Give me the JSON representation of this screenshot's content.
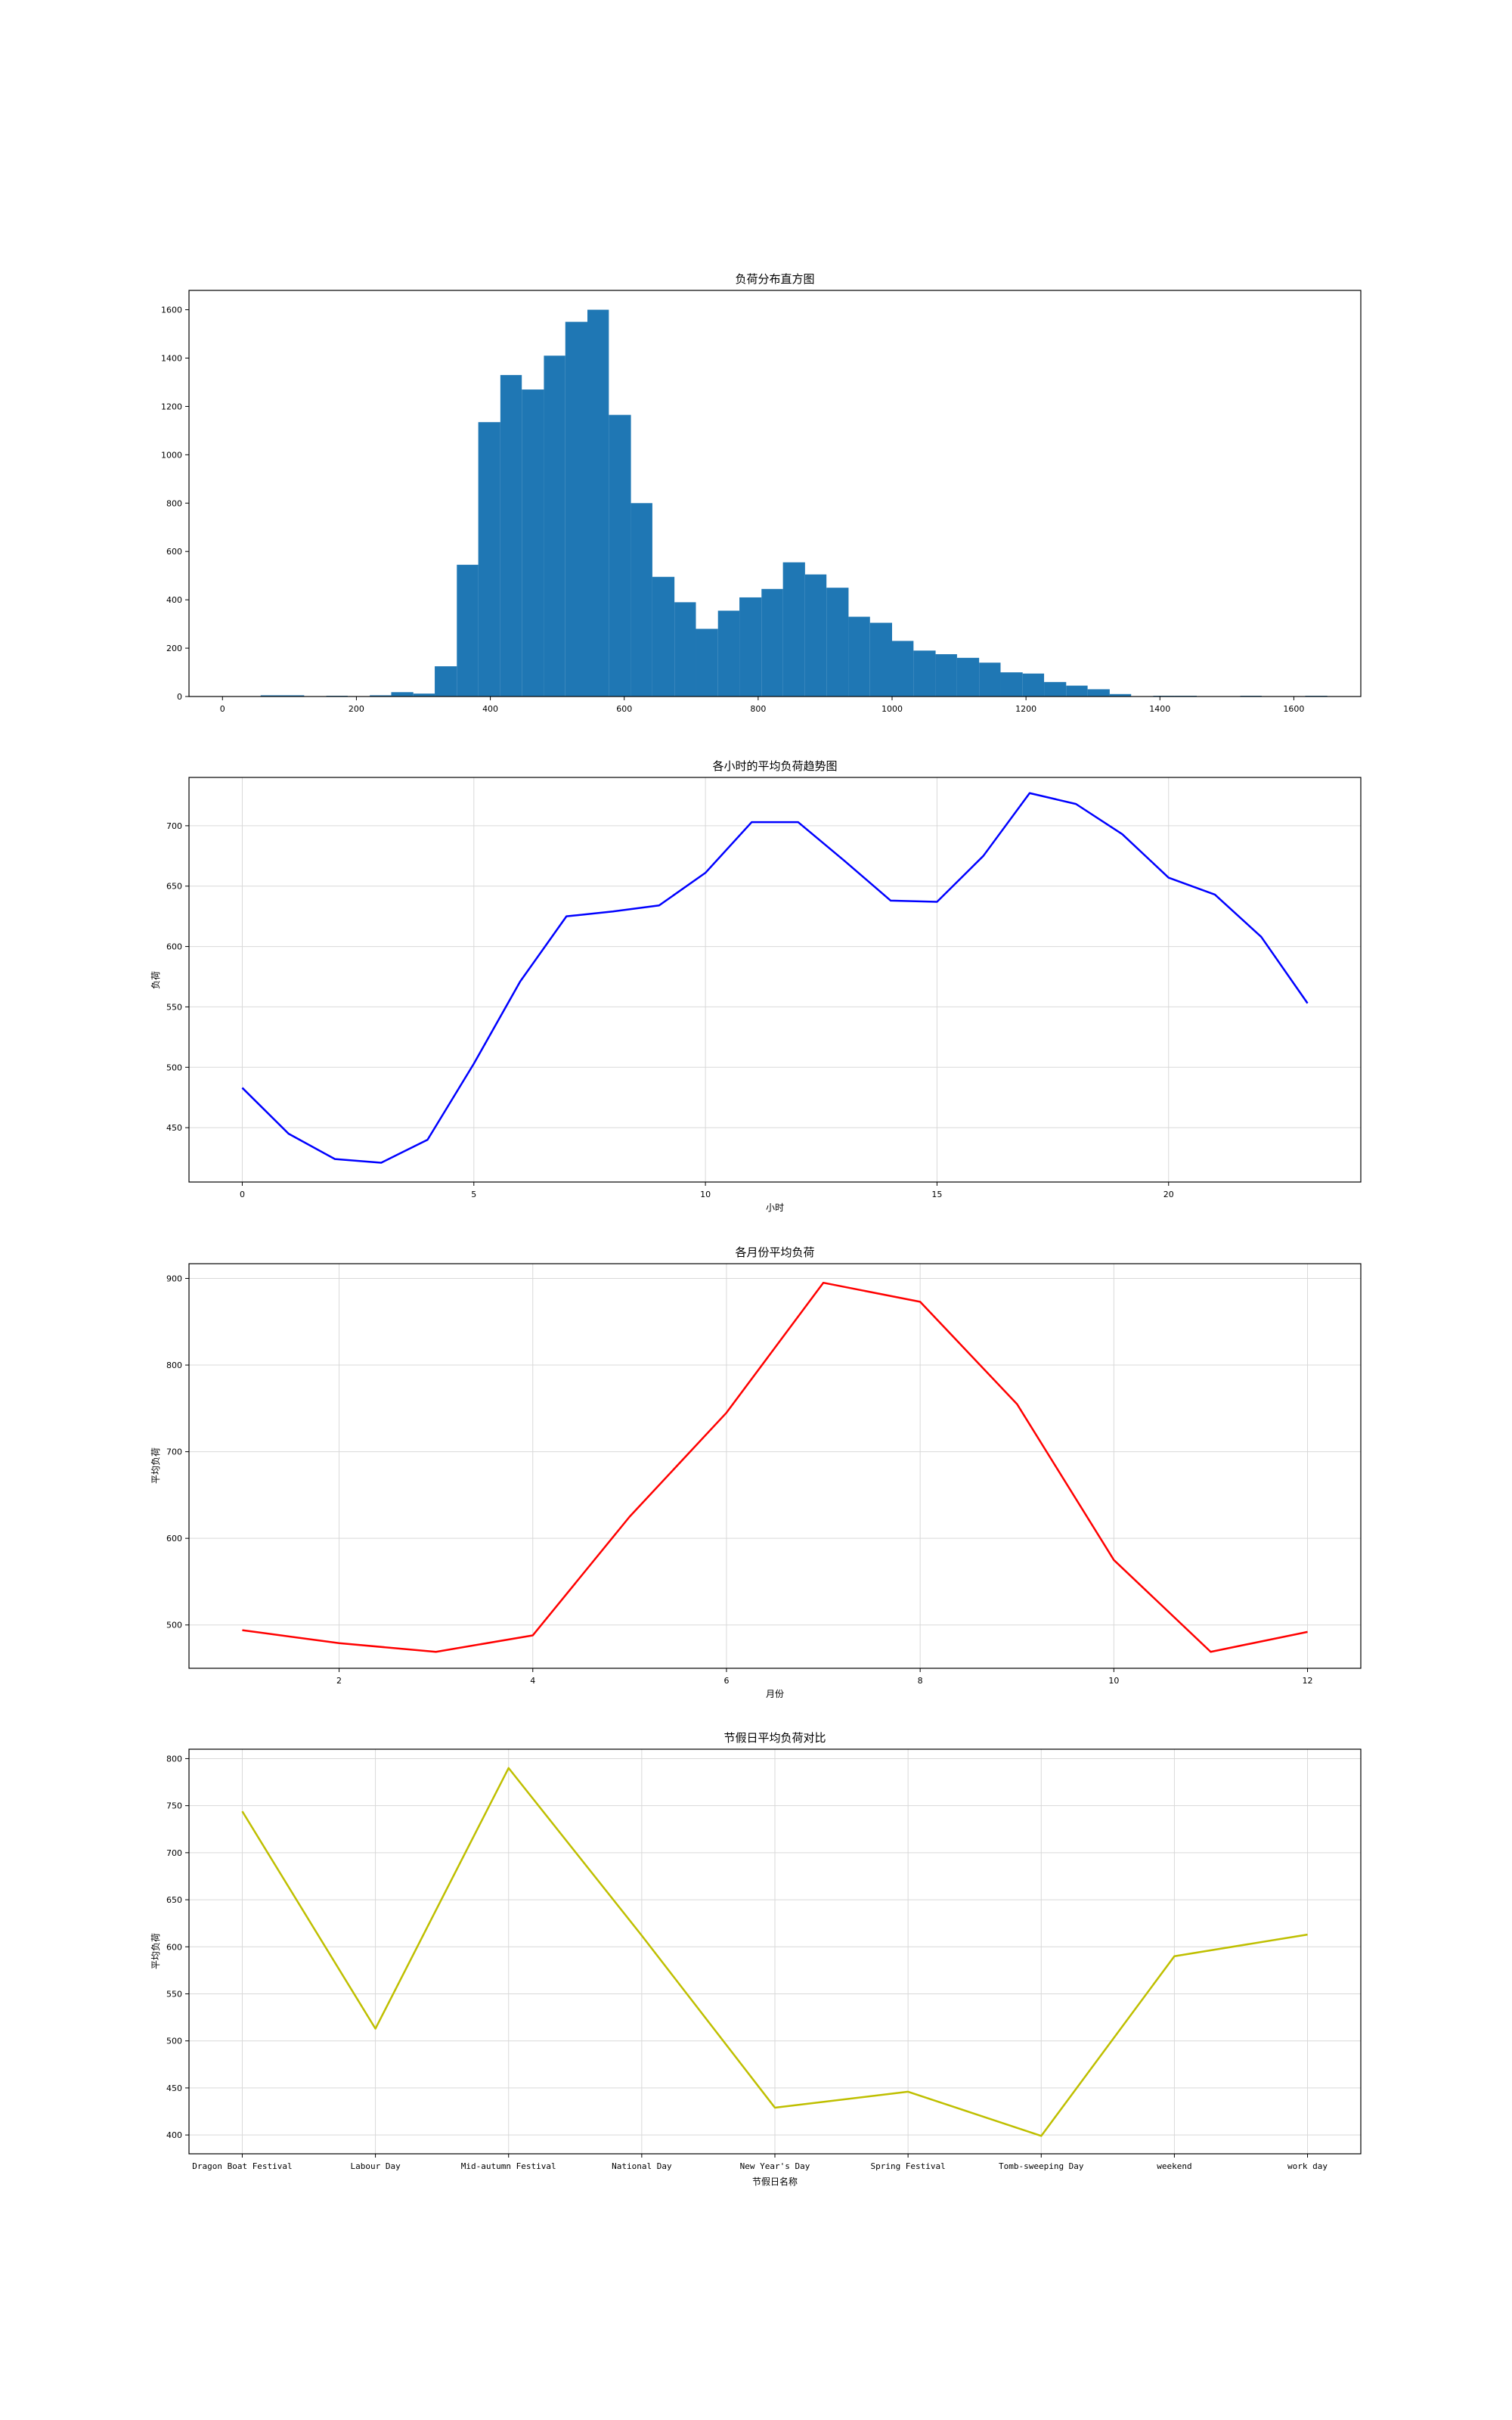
{
  "chart_data": [
    {
      "type": "bar",
      "title": "负荷分布直方图",
      "xlabel": "",
      "ylabel": "",
      "xlim": [
        -50,
        1700
      ],
      "ylim": [
        0,
        1680
      ],
      "xticks": [
        0,
        200,
        400,
        600,
        800,
        1000,
        1200,
        1400,
        1600
      ],
      "yticks": [
        0,
        200,
        400,
        600,
        800,
        1000,
        1200,
        1400,
        1600
      ],
      "bin_edges": [
        25,
        57,
        90,
        122,
        155,
        187,
        220,
        252,
        285,
        317,
        350,
        382,
        415,
        447,
        480,
        512,
        545,
        577,
        610,
        642,
        675,
        707,
        740,
        772,
        805,
        837,
        870,
        902,
        935,
        967,
        1000,
        1032,
        1065,
        1097,
        1130,
        1162,
        1195,
        1227,
        1260,
        1292,
        1325,
        1357,
        1390,
        1422,
        1455,
        1487,
        1520,
        1552,
        1585,
        1617,
        1650
      ],
      "values": [
        0,
        5,
        5,
        0,
        3,
        0,
        5,
        18,
        12,
        125,
        545,
        1135,
        1330,
        1270,
        1410,
        1550,
        1600,
        1165,
        800,
        495,
        390,
        280,
        355,
        410,
        445,
        555,
        505,
        450,
        330,
        305,
        230,
        190,
        175,
        160,
        140,
        100,
        95,
        60,
        45,
        30,
        10,
        0,
        3,
        3,
        0,
        0,
        3,
        0,
        0,
        3
      ],
      "color": "#1f77b4",
      "grid": false
    },
    {
      "type": "line",
      "title": "各小时的平均负荷趋势图",
      "xlabel": "小时",
      "ylabel": "负荷",
      "xlim": [
        -1.15,
        24.15
      ],
      "ylim": [
        405,
        740
      ],
      "xticks": [
        0,
        5,
        10,
        15,
        20
      ],
      "yticks": [
        450,
        500,
        550,
        600,
        650,
        700
      ],
      "x": [
        0,
        1,
        2,
        3,
        4,
        5,
        6,
        7,
        8,
        9,
        10,
        11,
        12,
        13,
        14,
        15,
        16,
        17,
        18,
        19,
        20,
        21,
        22,
        23
      ],
      "series": [
        {
          "values": [
            483,
            445,
            424,
            421,
            440,
            503,
            571,
            625,
            629,
            634,
            661,
            703,
            703,
            671,
            638,
            637,
            675,
            727,
            718,
            693,
            657,
            643,
            608,
            553
          ]
        }
      ],
      "color": "#0000ff",
      "grid": true
    },
    {
      "type": "line",
      "title": "各月份平均负荷",
      "xlabel": "月份",
      "ylabel": "平均负荷",
      "xlim": [
        0.45,
        12.55
      ],
      "ylim": [
        450,
        917
      ],
      "xticks": [
        2,
        4,
        6,
        8,
        10,
        12
      ],
      "yticks": [
        500,
        600,
        700,
        800,
        900
      ],
      "x": [
        1,
        2,
        3,
        4,
        5,
        6,
        7,
        8,
        9,
        10,
        11,
        12
      ],
      "series": [
        {
          "values": [
            494,
            479,
            469,
            488,
            625,
            745,
            895,
            873,
            755,
            575,
            469,
            492
          ]
        }
      ],
      "color": "#ff0000",
      "grid": true
    },
    {
      "type": "line",
      "title": "节假日平均负荷对比",
      "xlabel": "节假日名称",
      "ylabel": "平均负荷",
      "ylim": [
        380,
        810
      ],
      "yticks": [
        400,
        450,
        500,
        550,
        600,
        650,
        700,
        750,
        800
      ],
      "categories": [
        "Dragon Boat Festival",
        "Labour Day",
        "Mid-autumn Festival",
        "National Day",
        "New Year's Day",
        "Spring Festival",
        "Tomb-sweeping Day",
        "weekend",
        "work day"
      ],
      "series": [
        {
          "values": [
            744,
            513,
            790,
            612,
            429,
            446,
            399,
            590,
            613
          ]
        }
      ],
      "color": "#bfbf00",
      "grid": true
    }
  ]
}
